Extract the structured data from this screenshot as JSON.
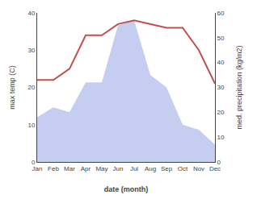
{
  "chart_data": {
    "type": "line",
    "categories": [
      "Jan",
      "Feb",
      "Mar",
      "Apr",
      "May",
      "Jun",
      "Jul",
      "Aug",
      "Sep",
      "Oct",
      "Nov",
      "Dec"
    ],
    "series": [
      {
        "type": "area",
        "color": "#c5cef0",
        "axis": "y2",
        "values": [
          18,
          22,
          20,
          32,
          32,
          55,
          57,
          35,
          30,
          15,
          13,
          7
        ]
      },
      {
        "type": "line",
        "color": "#c0504d",
        "values": [
          22,
          22,
          25,
          34,
          34,
          37,
          38,
          37,
          36,
          36,
          30,
          21
        ]
      }
    ],
    "xlabel": "date (month)",
    "ylabel": "max temp (C)",
    "y2label": "med. precipitation (kg/m2)",
    "ylim": [
      0,
      40
    ],
    "yticks": [
      0,
      10,
      20,
      30,
      40
    ],
    "y2lim": [
      0,
      60
    ],
    "y2ticks": [
      0,
      10,
      20,
      30,
      40,
      50,
      60
    ],
    "grid": false
  }
}
